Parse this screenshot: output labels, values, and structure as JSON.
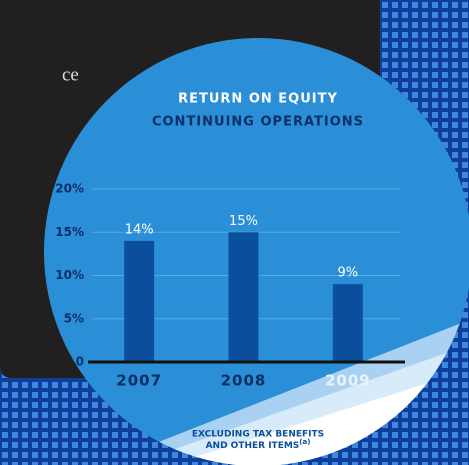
{
  "background_text": "ce",
  "chart_data": {
    "type": "bar",
    "title": "RETURN ON EQUITY",
    "subtitle": "CONTINUING OPERATIONS",
    "categories": [
      "2007",
      "2008",
      "2009"
    ],
    "values": [
      14,
      15,
      9
    ],
    "value_labels": [
      "14%",
      "15%",
      "9%"
    ],
    "color": "#0b4f9c",
    "ylim": [
      0,
      20
    ],
    "yticks": [
      0,
      {
        "value": 5,
        "label": "5%"
      },
      {
        "value": 10,
        "label": "10%"
      },
      {
        "value": 15,
        "label": "15%"
      },
      {
        "value": 20,
        "label": "20%"
      }
    ],
    "grid": true,
    "note": [
      "EXCLUDING TAX BENEFITS",
      "AND OTHER ITEMS"
    ],
    "note_ref": "(a)"
  }
}
